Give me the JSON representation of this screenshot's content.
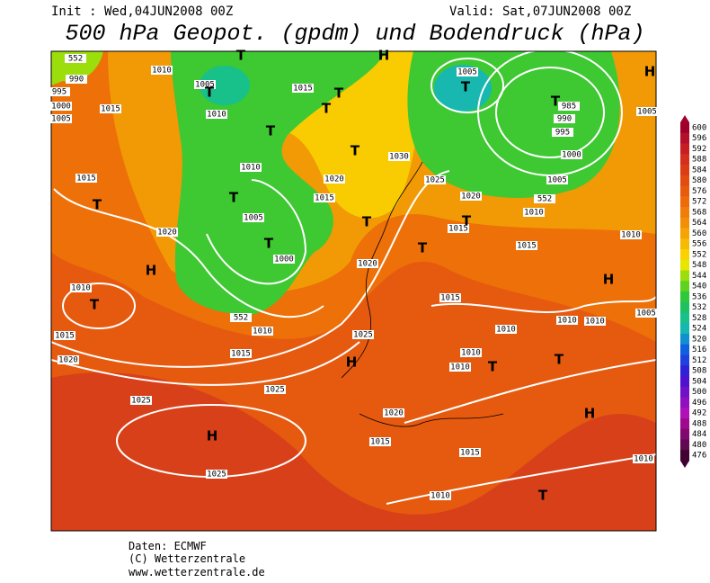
{
  "header": {
    "init": "Init : Wed,04JUN2008 00Z",
    "valid": "Valid: Sat,07JUN2008 00Z",
    "title": "500 hPa Geopot. (gpdm) und Bodendruck (hPa)"
  },
  "colorbar": {
    "ticks": [
      600,
      596,
      592,
      588,
      584,
      580,
      576,
      572,
      568,
      564,
      560,
      556,
      552,
      548,
      544,
      540,
      536,
      532,
      528,
      524,
      520,
      516,
      512,
      508,
      504,
      500,
      496,
      492,
      488,
      484,
      480,
      476
    ],
    "colors": [
      "#a0002a",
      "#b4102c",
      "#c81e23",
      "#d52d1e",
      "#dc3c14",
      "#e34b10",
      "#e85a0c",
      "#ee6b0a",
      "#f17c08",
      "#f48e06",
      "#f6a404",
      "#f7ba02",
      "#f9d200",
      "#e8e600",
      "#9bde0b",
      "#5ed21e",
      "#2ec83a",
      "#1ec060",
      "#18c08a",
      "#14b8b0",
      "#1090d0",
      "#1060e0",
      "#2040e0",
      "#3020d8",
      "#5010d0",
      "#7010c8",
      "#9010c0",
      "#b010b8",
      "#a00890",
      "#800870",
      "#600850",
      "#400030"
    ]
  },
  "isobar_labels": [
    "1010",
    "1005",
    "1010",
    "1015",
    "1005",
    "985",
    "990",
    "995",
    "1000",
    "1005",
    "1030",
    "1025",
    "1020",
    "1010",
    "1015",
    "1015",
    "1010",
    "1015",
    "1015",
    "1020",
    "1010",
    "1005",
    "1000",
    "1015",
    "1020",
    "1020",
    "1015",
    "1010",
    "1015",
    "1020",
    "1010",
    "1015",
    "1025",
    "1010",
    "1010",
    "1010",
    "1005",
    "1010",
    "1010",
    "1025",
    "1025",
    "1020",
    "1015",
    "1015",
    "1025",
    "1010",
    "1010",
    "990",
    "995",
    "1000",
    "1005",
    "1005",
    "552",
    "552",
    "552"
  ],
  "centers": [
    "H",
    "H",
    "T",
    "T",
    "T",
    "T",
    "T",
    "T",
    "T",
    "T",
    "T",
    "T",
    "T",
    "T",
    "T",
    "H",
    "T",
    "T",
    "H",
    "T",
    "T",
    "H",
    "H",
    "H",
    "T"
  ],
  "footer": {
    "source": "Daten: ECMWF",
    "copyright": "(C) Wetterzentrale",
    "url": "www.wetterzentrale.de"
  }
}
